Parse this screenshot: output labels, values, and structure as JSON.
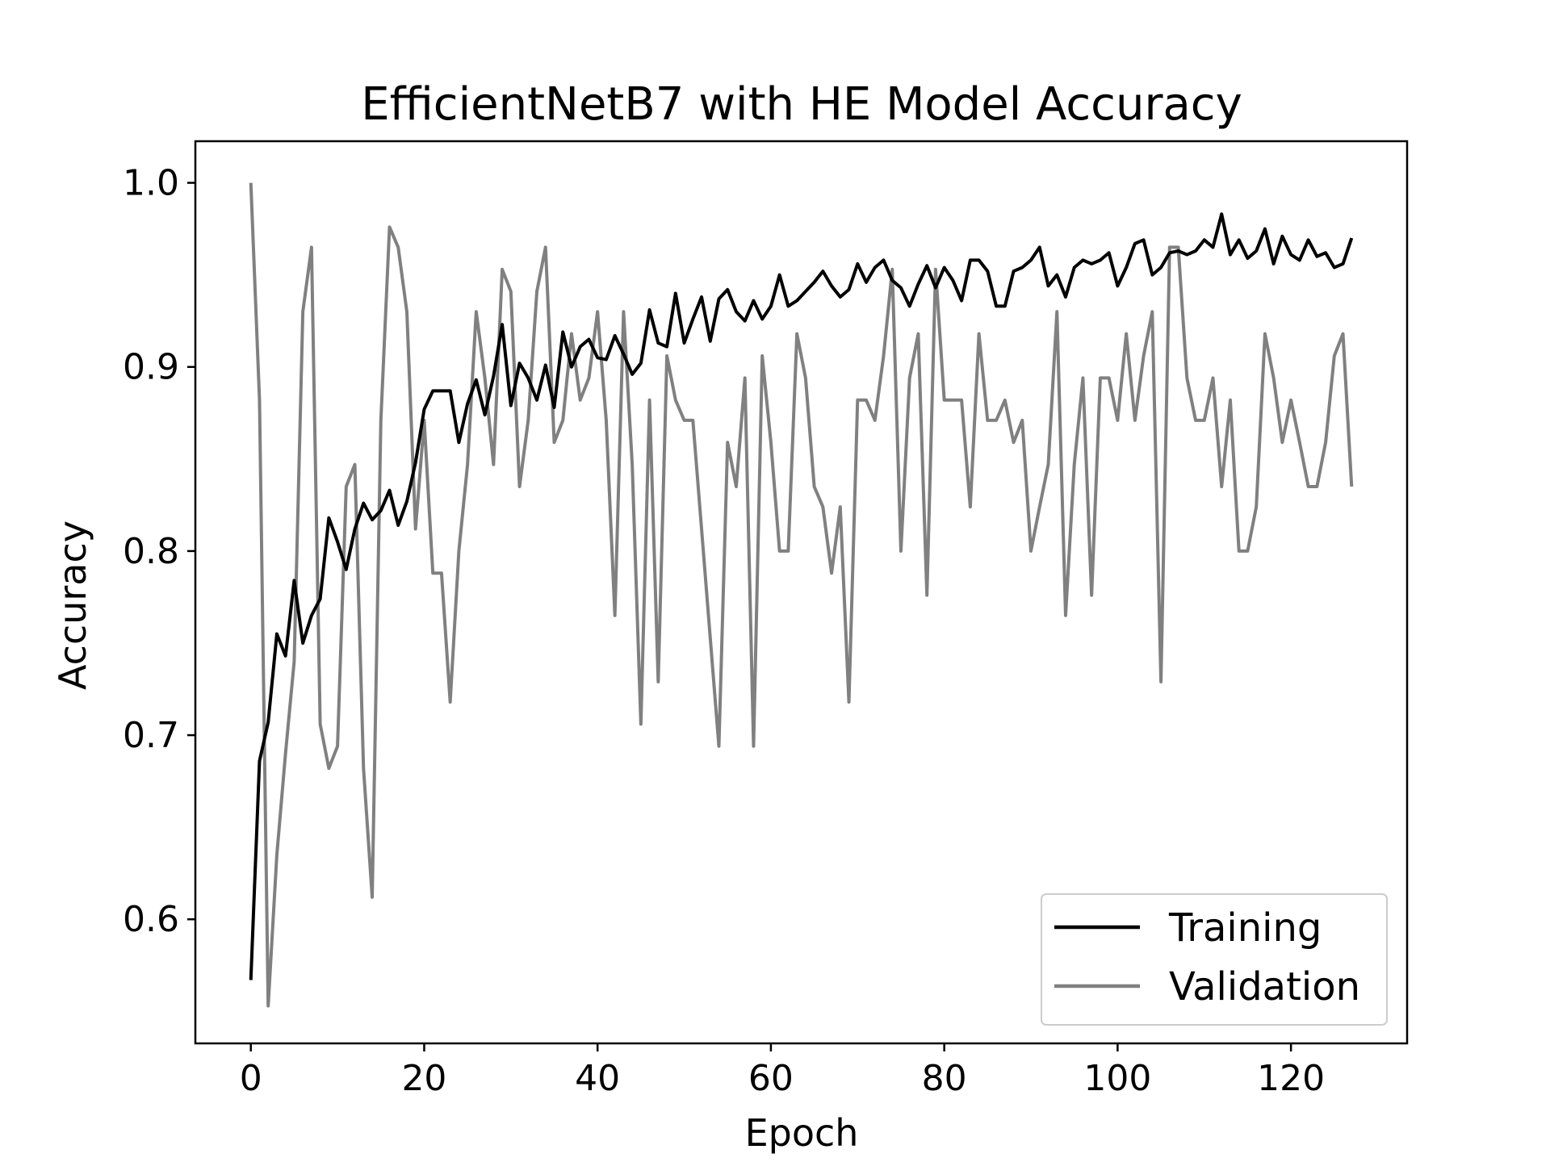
{
  "chart_data": {
    "type": "line",
    "title": "EfficientNetB7 with HE Model Accuracy",
    "xlabel": "Epoch",
    "ylabel": "Accuracy",
    "xlim": [
      -6.4,
      133.4
    ],
    "ylim": [
      0.5326,
      1.0226
    ],
    "xticks": [
      0,
      20,
      40,
      60,
      80,
      100,
      120
    ],
    "yticks": [
      0.6,
      0.7,
      0.8,
      0.9,
      1.0
    ],
    "xtick_labels": [
      "0",
      "20",
      "40",
      "60",
      "80",
      "100",
      "120"
    ],
    "ytick_labels": [
      "0.6",
      "0.7",
      "0.8",
      "0.9",
      "1.0"
    ],
    "grid": false,
    "legend_position": "lower-right",
    "series": [
      {
        "name": "Training",
        "color": "#000000",
        "values": [
          0.567,
          0.686,
          0.707,
          0.755,
          0.743,
          0.784,
          0.75,
          0.765,
          0.774,
          0.818,
          0.805,
          0.79,
          0.812,
          0.826,
          0.817,
          0.822,
          0.833,
          0.814,
          0.827,
          0.848,
          0.877,
          0.887,
          0.887,
          0.887,
          0.859,
          0.88,
          0.893,
          0.874,
          0.895,
          0.923,
          0.879,
          0.902,
          0.894,
          0.882,
          0.901,
          0.878,
          0.919,
          0.9,
          0.911,
          0.915,
          0.905,
          0.904,
          0.917,
          0.907,
          0.896,
          0.902,
          0.931,
          0.913,
          0.911,
          0.94,
          0.913,
          0.926,
          0.938,
          0.914,
          0.937,
          0.942,
          0.93,
          0.925,
          0.936,
          0.926,
          0.933,
          0.95,
          0.933,
          0.936,
          0.941,
          0.946,
          0.952,
          0.944,
          0.938,
          0.942,
          0.956,
          0.946,
          0.954,
          0.958,
          0.947,
          0.943,
          0.933,
          0.945,
          0.955,
          0.943,
          0.954,
          0.947,
          0.936,
          0.958,
          0.958,
          0.952,
          0.933,
          0.933,
          0.952,
          0.954,
          0.958,
          0.965,
          0.944,
          0.95,
          0.938,
          0.954,
          0.958,
          0.956,
          0.958,
          0.962,
          0.944,
          0.954,
          0.967,
          0.969,
          0.95,
          0.954,
          0.962,
          0.963,
          0.961,
          0.963,
          0.969,
          0.965,
          0.983,
          0.961,
          0.969,
          0.959,
          0.963,
          0.975,
          0.956,
          0.971,
          0.961,
          0.958,
          0.969,
          0.96,
          0.962,
          0.954,
          0.956,
          0.97
        ]
      },
      {
        "name": "Validation",
        "color": "#808080",
        "values": [
          1.0,
          0.882,
          0.553,
          0.635,
          0.69,
          0.74,
          0.93,
          0.965,
          0.706,
          0.682,
          0.694,
          0.835,
          0.847,
          0.682,
          0.612,
          0.871,
          0.976,
          0.965,
          0.93,
          0.812,
          0.871,
          0.788,
          0.788,
          0.718,
          0.8,
          0.847,
          0.93,
          0.894,
          0.847,
          0.953,
          0.941,
          0.835,
          0.871,
          0.941,
          0.965,
          0.859,
          0.871,
          0.918,
          0.882,
          0.894,
          0.93,
          0.871,
          0.765,
          0.93,
          0.847,
          0.706,
          0.882,
          0.729,
          0.906,
          0.882,
          0.871,
          0.871,
          0.812,
          0.753,
          0.694,
          0.859,
          0.835,
          0.894,
          0.694,
          0.906,
          0.859,
          0.8,
          0.8,
          0.918,
          0.894,
          0.835,
          0.824,
          0.788,
          0.824,
          0.718,
          0.882,
          0.882,
          0.871,
          0.906,
          0.953,
          0.8,
          0.894,
          0.918,
          0.776,
          0.953,
          0.882,
          0.882,
          0.882,
          0.824,
          0.918,
          0.871,
          0.871,
          0.882,
          0.859,
          0.871,
          0.8,
          0.824,
          0.847,
          0.93,
          0.765,
          0.847,
          0.894,
          0.776,
          0.894,
          0.894,
          0.871,
          0.918,
          0.871,
          0.906,
          0.93,
          0.729,
          0.965,
          0.965,
          0.894,
          0.871,
          0.871,
          0.894,
          0.835,
          0.882,
          0.8,
          0.8,
          0.824,
          0.918,
          0.894,
          0.859,
          0.882,
          0.859,
          0.835,
          0.835,
          0.859,
          0.906,
          0.918,
          0.835
        ]
      }
    ]
  }
}
